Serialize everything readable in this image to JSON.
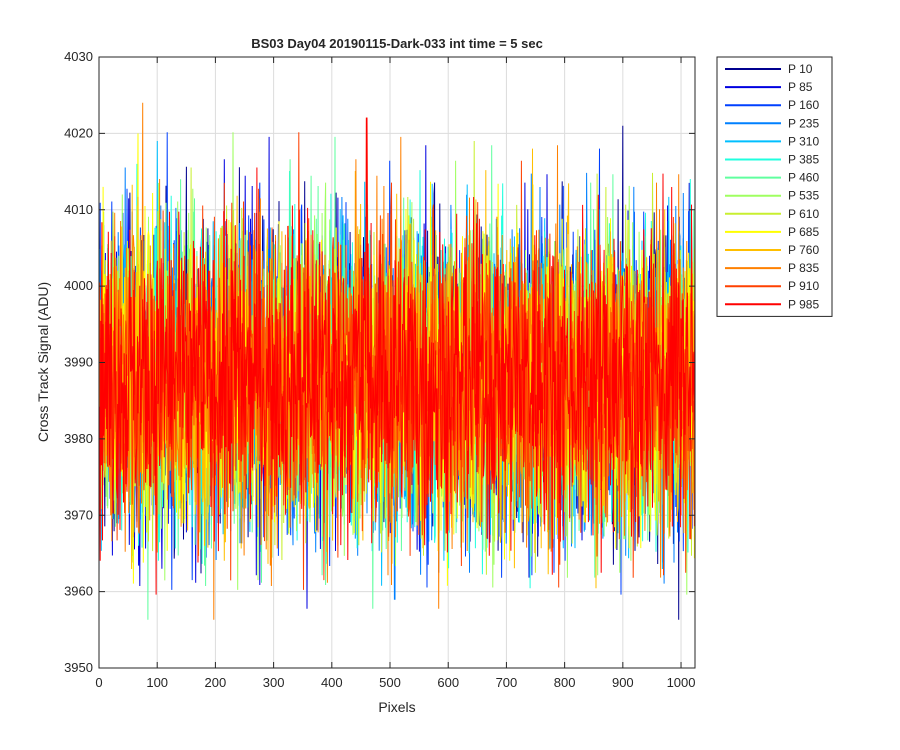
{
  "chart_data": {
    "type": "line",
    "title": "BS03 Day04 20190115-Dark-033 int time = 5 sec",
    "xlabel": "Pixels",
    "ylabel": "Cross Track Signal (ADU)",
    "xlim": [
      0,
      1024
    ],
    "ylim": [
      3950,
      4030
    ],
    "xticks": [
      0,
      100,
      200,
      300,
      400,
      500,
      600,
      700,
      800,
      900,
      1000
    ],
    "yticks": [
      3950,
      3960,
      3970,
      3980,
      3990,
      4000,
      4010,
      4020,
      4030
    ],
    "grid": true,
    "legend_position": "outside-right",
    "noise": {
      "mean": 3988,
      "typical_min": 3968,
      "typical_max": 4010,
      "points_per_series": 1024
    },
    "series": [
      {
        "name": "P 10",
        "color": "#00008f",
        "peak": {
          "x": 900,
          "y": 4021
        }
      },
      {
        "name": "P 85",
        "color": "#0000e0",
        "peak": {
          "x": 108,
          "y": 3963
        }
      },
      {
        "name": "P 160",
        "color": "#0040ff",
        "peak": {
          "x": 860,
          "y": 4018
        }
      },
      {
        "name": "P 235",
        "color": "#0080ff",
        "peak": {
          "x": 508,
          "y": 3959
        }
      },
      {
        "name": "P 310",
        "color": "#00bfff",
        "peak": {
          "x": 100,
          "y": 4019
        }
      },
      {
        "name": "P 385",
        "color": "#20ffdf",
        "peak": {
          "x": 65,
          "y": 4016
        }
      },
      {
        "name": "P 460",
        "color": "#60ff9f",
        "peak": {
          "x": 140,
          "y": 4014
        }
      },
      {
        "name": "P 535",
        "color": "#9fff60",
        "peak": {
          "x": 40,
          "y": 4012
        }
      },
      {
        "name": "P 610",
        "color": "#c8ef30",
        "peak": {
          "x": 645,
          "y": 4019
        }
      },
      {
        "name": "P 685",
        "color": "#ffff00",
        "peak": {
          "x": 67,
          "y": 4020
        }
      },
      {
        "name": "P 760",
        "color": "#ffbf00",
        "peak": {
          "x": 745,
          "y": 4018
        }
      },
      {
        "name": "P 835",
        "color": "#ff8000",
        "peak": {
          "x": 75,
          "y": 4024
        }
      },
      {
        "name": "P 910",
        "color": "#ff4000",
        "peak": {
          "x": 460,
          "y": 4022
        }
      },
      {
        "name": "P 985",
        "color": "#ff0000",
        "peak": {
          "x": 460,
          "y": 4022
        }
      }
    ]
  }
}
